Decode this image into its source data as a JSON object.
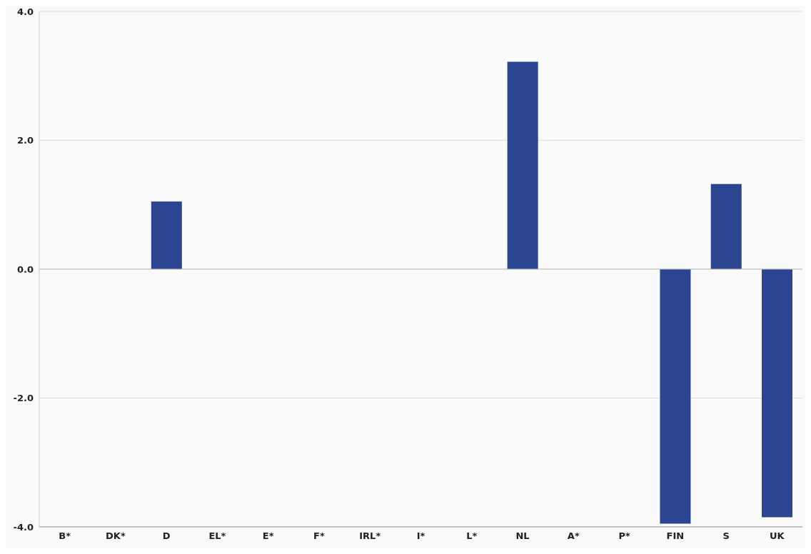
{
  "chart_data": {
    "type": "bar",
    "categories": [
      "B*",
      "DK*",
      "D",
      "EL*",
      "E*",
      "F*",
      "IRL*",
      "I*",
      "L*",
      "NL",
      "A*",
      "P*",
      "FIN",
      "S",
      "UK"
    ],
    "values": [
      null,
      null,
      1.05,
      null,
      null,
      null,
      null,
      null,
      null,
      3.22,
      null,
      null,
      -3.95,
      1.32,
      -3.85
    ],
    "color": "#2b4590",
    "ylim": [
      -4,
      4
    ],
    "yticks": [
      {
        "value": -4,
        "label": "-4.0"
      },
      {
        "value": -2,
        "label": "-2.0"
      },
      {
        "value": 0,
        "label": "0.0"
      },
      {
        "value": 2,
        "label": "2.0"
      },
      {
        "value": 4,
        "label": "4.0"
      }
    ],
    "grid": "y"
  }
}
